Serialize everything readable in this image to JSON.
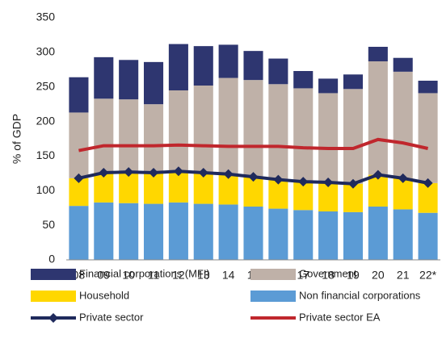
{
  "chart_data": {
    "type": "bar",
    "stacked": true,
    "y_label": "% of GDP",
    "categories": [
      "08",
      "09",
      "10",
      "11",
      "12",
      "13",
      "14",
      "15",
      "16",
      "17",
      "18",
      "19",
      "20",
      "21",
      "22*"
    ],
    "series": [
      {
        "name": "Financial corporations (MFI)",
        "color": "#2e3670",
        "values": [
          51,
          60,
          57,
          61,
          67,
          57,
          48,
          42,
          37,
          25,
          21,
          21,
          21,
          20,
          18
        ]
      },
      {
        "name": "Government",
        "color": "#bfb1a8",
        "values": [
          95,
          107,
          105,
          99,
          117,
          126,
          139,
          140,
          138,
          135,
          129,
          137,
          164,
          154,
          130
        ]
      },
      {
        "name": "Household",
        "color": "#ffd700",
        "values": [
          40,
          43,
          45,
          45,
          45,
          45,
          44,
          43,
          42,
          41,
          42,
          41,
          46,
          45,
          43
        ]
      },
      {
        "name": "Non financial corporations",
        "color": "#5b9bd5",
        "values": [
          78,
          83,
          82,
          81,
          83,
          81,
          80,
          77,
          74,
          72,
          70,
          69,
          77,
          73,
          68
        ]
      },
      {
        "name": "Private sector",
        "type": "line",
        "marker": "diamond",
        "color": "#1f2a5c",
        "values": [
          118,
          126,
          127,
          126,
          128,
          126,
          124,
          120,
          116,
          113,
          112,
          110,
          123,
          118,
          111
        ]
      },
      {
        "name": "Private sector EA",
        "type": "line",
        "color": "#c0272d",
        "values": [
          158,
          165,
          165,
          165,
          166,
          165,
          164,
          164,
          164,
          162,
          161,
          161,
          174,
          169,
          161
        ]
      }
    ],
    "ylim": [
      0,
      350
    ],
    "yticks": [
      0,
      50,
      100,
      150,
      200,
      250,
      300,
      350
    ],
    "grid": false,
    "legend": "bottom"
  }
}
